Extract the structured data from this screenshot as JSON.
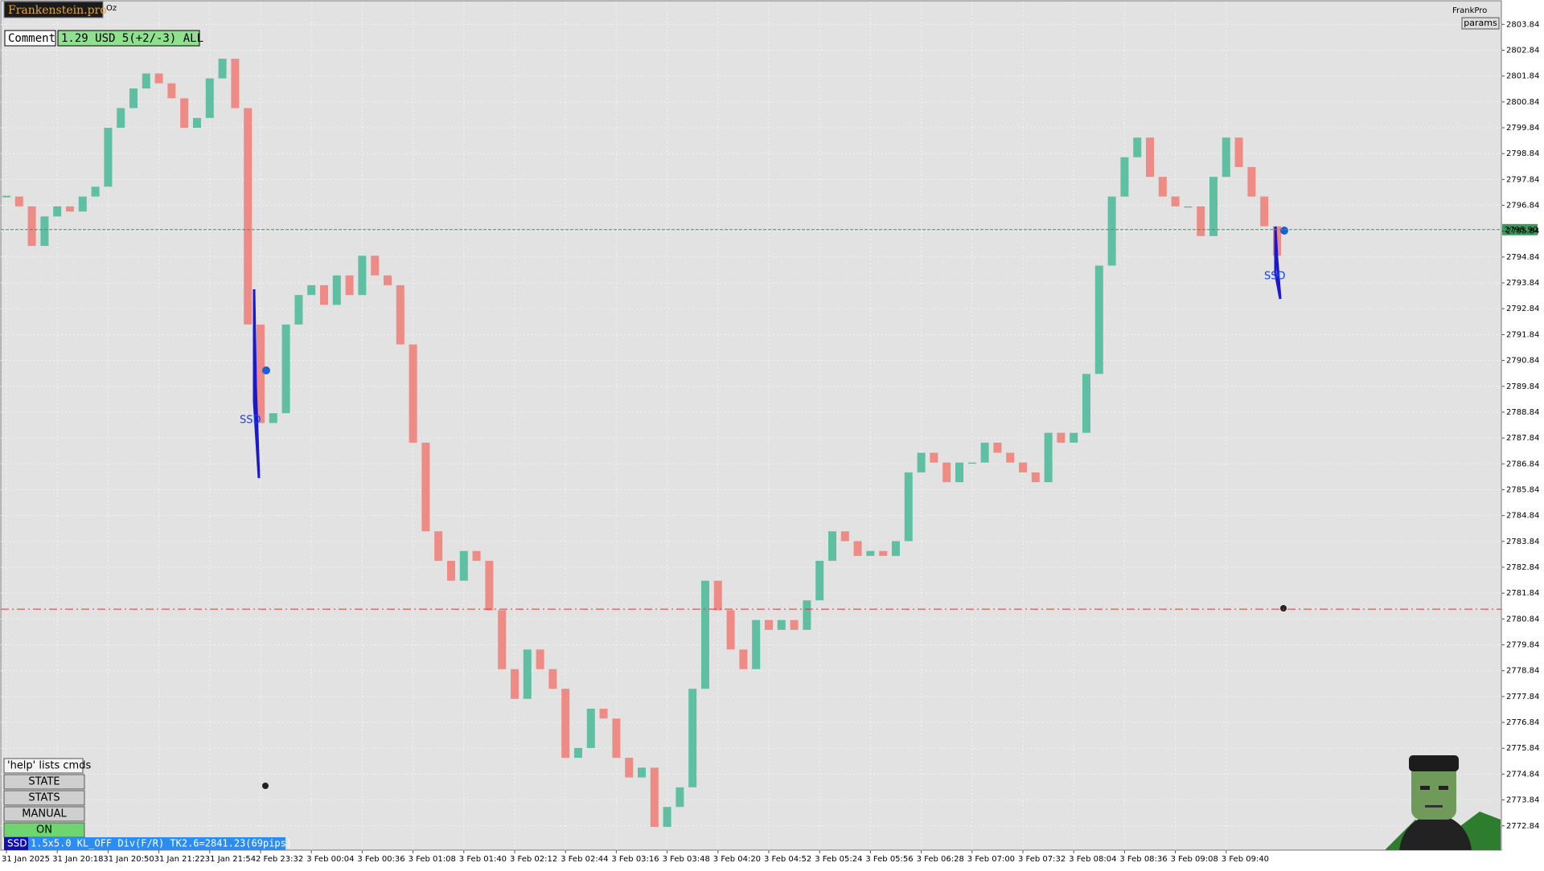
{
  "ui": {
    "brand": "Frankenstein.pro",
    "symbol_note": "Oz",
    "comment_label": "Comment",
    "comment_value": "1.29 USD 5(+2/-3) ALL",
    "indicator": "FrankPro",
    "params": "params",
    "buttons": [
      "'help' lists cmds",
      "STATE",
      "STATS",
      "MANUAL",
      "ON"
    ],
    "status_tag": "SSD",
    "status_text": "1.5x5.0 KL_OFF Div(F/R) TK2.6=2841.23(69pips)"
  },
  "chart_data": {
    "type": "candlestick",
    "categories": [
      "31 Jan 2025",
      null,
      null,
      null,
      "31 Jan 20:18",
      null,
      null,
      null,
      "31 Jan 20:50",
      null,
      null,
      null,
      "31 Jan 21:22",
      null,
      null,
      null,
      "31 Jan 21:54",
      null,
      null,
      null,
      "2 Feb 23:32",
      null,
      null,
      null,
      "3 Feb 00:04",
      null,
      null,
      null,
      "3 Feb 00:36",
      null,
      null,
      null,
      "3 Feb 01:08",
      null,
      null,
      null,
      "3 Feb 01:40",
      null,
      null,
      null,
      "3 Feb 02:12",
      null,
      null,
      null,
      "3 Feb 02:44",
      null,
      null,
      null,
      "3 Feb 03:16",
      null,
      null,
      null,
      "3 Feb 03:48",
      null,
      null,
      null,
      "3 Feb 04:20",
      null,
      null,
      null,
      "3 Feb 04:52",
      null,
      null,
      null,
      "3 Feb 05:24",
      null,
      null,
      null,
      "3 Feb 05:56",
      null,
      null,
      null,
      "3 Feb 06:28",
      null,
      null,
      null,
      "3 Feb 07:00",
      null,
      null,
      null,
      "3 Feb 07:32",
      null,
      null,
      null,
      "3 Feb 08:04",
      null,
      null,
      null,
      "3 Feb 08:36",
      null,
      null,
      null,
      "3 Feb 09:08",
      null,
      null,
      null,
      "3 Feb 09:40",
      null,
      null,
      null,
      null
    ],
    "values": [
      2797.18,
      2796.8,
      2795.27,
      2796.41,
      2796.8,
      2796.6,
      2797.18,
      2797.56,
      2799.84,
      2800.6,
      2801.36,
      2801.94,
      2801.56,
      2800.98,
      2799.84,
      2800.22,
      2801.75,
      2802.51,
      2800.6,
      2792.23,
      2788.42,
      2788.8,
      2792.23,
      2793.37,
      2793.75,
      2792.99,
      2794.13,
      2793.37,
      2794.89,
      2794.13,
      2793.75,
      2791.46,
      2787.66,
      2784.23,
      2783.09,
      2782.32,
      2783.47,
      2783.09,
      2781.18,
      2778.9,
      2777.75,
      2779.66,
      2778.9,
      2778.14,
      2775.47,
      2775.85,
      2777.37,
      2776.99,
      2775.47,
      2774.71,
      2775.09,
      2772.8,
      2773.57,
      2774.33,
      2778.14,
      2782.32,
      2781.18,
      2779.66,
      2778.9,
      2780.8,
      2780.42,
      2780.8,
      2780.42,
      2781.56,
      2783.09,
      2784.23,
      2783.85,
      2783.28,
      2783.47,
      2783.28,
      2783.85,
      2786.51,
      2787.27,
      2786.89,
      2786.13,
      2786.89,
      2786.89,
      2787.66,
      2787.27,
      2786.89,
      2786.51,
      2786.13,
      2788.04,
      2787.66,
      2788.04,
      2790.32,
      2794.51,
      2797.18,
      2798.7,
      2799.46,
      2797.94,
      2797.18,
      2796.8,
      2796.8,
      2795.65,
      2797.94,
      2799.46,
      2798.32,
      2797.18,
      2796.03,
      2794.89
    ],
    "up_color": "#5fbfa3",
    "down_color": "#ee8b85",
    "ylim": [
      2771.9,
      2804.72
    ],
    "yticks": [
      2772.84,
      2773.84,
      2774.84,
      2775.84,
      2776.84,
      2777.84,
      2778.84,
      2779.84,
      2780.84,
      2781.84,
      2782.84,
      2783.84,
      2784.84,
      2785.84,
      2786.84,
      2787.84,
      2788.84,
      2789.84,
      2790.84,
      2791.84,
      2792.84,
      2793.84,
      2794.84,
      2795.84,
      2796.84,
      2797.84,
      2798.84,
      2799.84,
      2800.84,
      2801.84,
      2802.84,
      2803.84
    ],
    "grid": true,
    "current_price": {
      "value": 2795.9,
      "label": "2795.90"
    },
    "current_price_color": "#3a9a5a",
    "stop_line": 2781.22,
    "stop_line_color": "#e03535",
    "annotations": [
      {
        "label": "SSD",
        "value": 2788.53
      },
      {
        "label": "SSD",
        "value": 2794.09
      }
    ]
  }
}
